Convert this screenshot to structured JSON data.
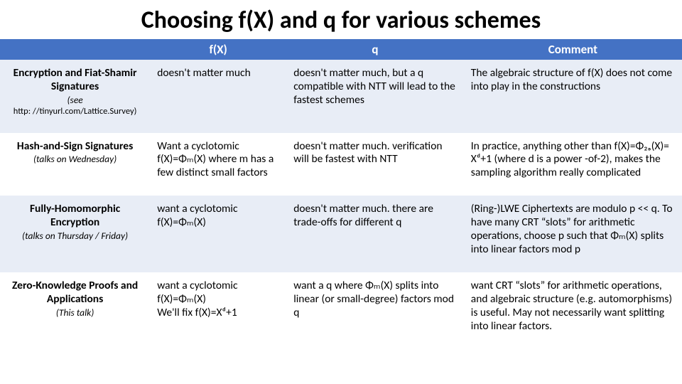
{
  "title": "Choosing f(X) and q for various schemes",
  "header": {
    "col0": "",
    "col1": "f(X)",
    "col2": "q",
    "col3": "Comment"
  },
  "rows": [
    {
      "label_main": "Encryption and Fiat-Shamir Signatures",
      "label_sub": "(see",
      "label_link": "http: //tinyurl.com/Lattice.Survey)",
      "fx": "doesn't matter much",
      "q": "doesn't matter much, but a q compatible with NTT will lead to the fastest schemes",
      "comment": "The algebraic structure of f(X) does not come into play in the constructions"
    },
    {
      "label_main": "Hash-and-Sign Signatures",
      "label_sub": "(talks on Wednesday)",
      "label_link": "",
      "fx": "Want a cyclotomic f(X)=Φₘ(X) where m has a few distinct small factors",
      "q": "doesn't matter much. verification will be fastest with NTT",
      "comment": "In practice, anything other than f(X)=Φ₂ₔ(X)= Xᵈ+1 (where d is a power -of-2), makes the sampling algorithm really complicated"
    },
    {
      "label_main": "Fully-Homomorphic Encryption",
      "label_sub": "(talks on Thursday / Friday)",
      "label_link": "",
      "fx": "want a cyclotomic f(X)=Φₘ(X)",
      "q": "doesn't matter much.  there are trade-offs for different q",
      "comment": "(Ring-)LWE Ciphertexts are modulo p << q.  To have many CRT “slots” for arithmetic operations, choose p  such that Φₘ(X) splits into linear factors mod p"
    },
    {
      "label_main": "Zero-Knowledge Proofs and Applications",
      "label_sub": "(This talk)",
      "label_link": "",
      "fx": "want a cyclotomic f(X)=Φₘ(X)\nWe'll fix f(X)=Xᵈ+1",
      "q": "want a q where Φₘ(X) splits into linear (or small-degree) factors mod q",
      "comment": "want CRT “slots” for arithmetic operations, and algebraic structure (e.g. automorphisms) is useful.  May not necessarily want splitting into linear factors."
    }
  ],
  "style": {
    "header_bg": "#4472c4",
    "header_fg": "#ffffff",
    "alt_row_bg": "#e8edf6",
    "body_bg": "#ffffff",
    "title_size_pt": 34,
    "header_size_pt": 17,
    "cell_size_pt": 15.5,
    "col_widths_pct": [
      22,
      20,
      26,
      32
    ]
  }
}
